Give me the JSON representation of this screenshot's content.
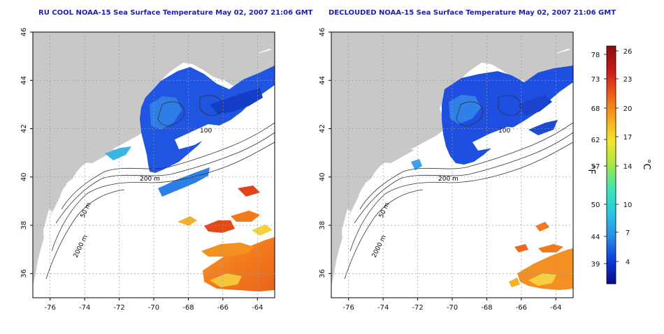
{
  "titles": {
    "left": "RU COOL NOAA-15 Sea Surface Temperature May 02, 2007 21:06 GMT",
    "right": "DECLOUDED NOAA-15 Sea Surface Temperature May 02, 2007 21:06 GMT"
  },
  "map": {
    "lon_range": [
      -77,
      -63
    ],
    "lat_range": [
      35,
      46
    ],
    "lon_ticks": [
      "-76",
      "-74",
      "-72",
      "-70",
      "-68",
      "-66",
      "-64"
    ],
    "lat_ticks": [
      "36",
      "38",
      "40",
      "42",
      "44",
      "46"
    ],
    "isobath_labels": [
      "50 m",
      "2000 m",
      "200 m",
      "100"
    ],
    "colors": {
      "land": "#c8c8c8",
      "ocean": "#ffffff",
      "grid": "#9a9a9a",
      "title": "#1f20a8"
    }
  },
  "colorbar": {
    "fahrenheit_label": "°F",
    "celsius_label": "°C",
    "fahrenheit_ticks": [
      "78",
      "73",
      "68",
      "62",
      "57",
      "50",
      "44",
      "39"
    ],
    "celsius_ticks": [
      "26",
      "23",
      "20",
      "17",
      "14",
      "10",
      "7",
      "4"
    ],
    "stops": [
      "#0b0a8c",
      "#0d3cd8",
      "#2a8ee6",
      "#26c9e0",
      "#3de6b0",
      "#a6e646",
      "#f2e62a",
      "#f7a31f",
      "#ec5c17",
      "#c81717",
      "#8a0e0e"
    ]
  }
}
